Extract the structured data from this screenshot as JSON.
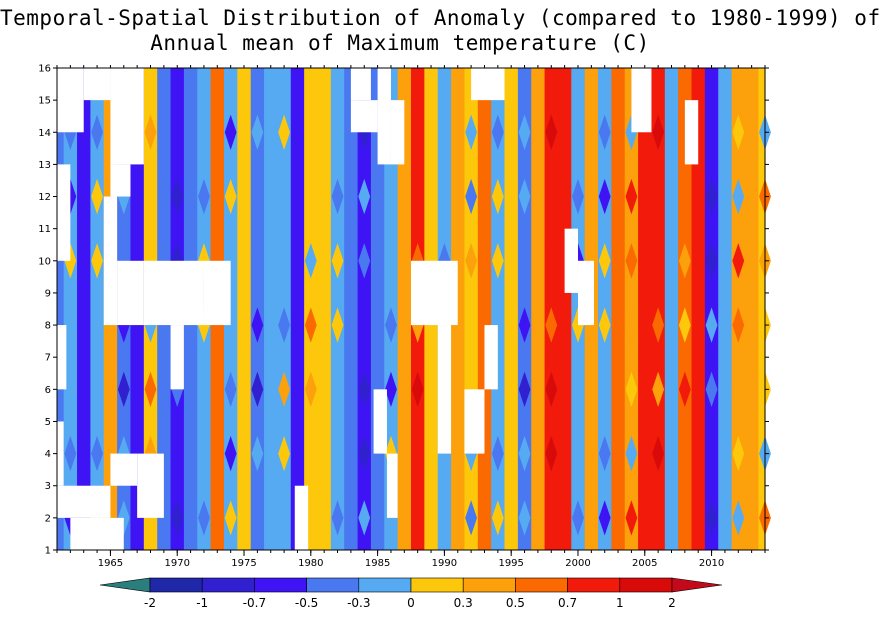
{
  "chart_data": {
    "type": "heatmap",
    "title_line1": "Temporal-Spatial Distribution of Anomaly (compared to 1980-1999) of",
    "title_line2": "Annual mean of Maximum temperature (C)",
    "x_range": [
      1961,
      2014
    ],
    "y_range": [
      1,
      16
    ],
    "x_ticks": [
      1965,
      1970,
      1975,
      1980,
      1985,
      1990,
      1995,
      2000,
      2005,
      2010
    ],
    "y_ticks": [
      1,
      2,
      3,
      4,
      5,
      6,
      7,
      8,
      9,
      10,
      11,
      12,
      13,
      14,
      15,
      16
    ],
    "colorbar": {
      "labels": [
        "-2",
        "-1",
        "-0.7",
        "-0.5",
        "-0.3",
        "0",
        "0.3",
        "0.5",
        "0.7",
        "1",
        "2"
      ],
      "colors": [
        "#2a7e7e",
        "#1f28a8",
        "#3020d0",
        "#3e14f5",
        "#4a78f0",
        "#56aaf2",
        "#fdc80b",
        "#fca00b",
        "#fb6a00",
        "#f21a0a",
        "#d80a0a",
        "#c40a1a"
      ]
    },
    "annual_field_mean": [
      [
        1961,
        -0.5
      ],
      [
        1962,
        -0.2
      ],
      [
        1963,
        -0.6
      ],
      [
        1964,
        -0.1
      ],
      [
        1965,
        0.35
      ],
      [
        1966,
        -0.4
      ],
      [
        1967,
        -0.6
      ],
      [
        1968,
        0.2
      ],
      [
        1969,
        -0.5
      ],
      [
        1970,
        -0.55
      ],
      [
        1971,
        -0.4
      ],
      [
        1972,
        -0.1
      ],
      [
        1973,
        0.6
      ],
      [
        1974,
        -0.3
      ],
      [
        1975,
        0.1
      ],
      [
        1976,
        -0.5
      ],
      [
        1977,
        -0.3
      ],
      [
        1978,
        -0.05
      ],
      [
        1979,
        -0.6
      ],
      [
        1980,
        0.2
      ],
      [
        1981,
        0.1
      ],
      [
        1982,
        -0.1
      ],
      [
        1983,
        -0.4
      ],
      [
        1984,
        -0.6
      ],
      [
        1985,
        -0.5
      ],
      [
        1986,
        -0.3
      ],
      [
        1987,
        0.4
      ],
      [
        1988,
        0.75
      ],
      [
        1989,
        0.2
      ],
      [
        1990,
        -0.1
      ],
      [
        1991,
        0.3
      ],
      [
        1992,
        0.0
      ],
      [
        1993,
        0.5
      ],
      [
        1994,
        -0.1
      ],
      [
        1995,
        0.1
      ],
      [
        1996,
        -0.4
      ],
      [
        1997,
        0.35
      ],
      [
        1998,
        0.95
      ],
      [
        1999,
        0.7
      ],
      [
        2000,
        -0.2
      ],
      [
        2001,
        0.4
      ],
      [
        2002,
        -0.15
      ],
      [
        2003,
        0.6
      ],
      [
        2004,
        0.35
      ],
      [
        2005,
        0.8
      ],
      [
        2006,
        0.7
      ],
      [
        2007,
        -0.1
      ],
      [
        2008,
        0.5
      ],
      [
        2009,
        0.9
      ],
      [
        2010,
        -0.6
      ],
      [
        2011,
        -0.3
      ],
      [
        2012,
        0.35
      ],
      [
        2013,
        0.3
      ],
      [
        2014,
        0.2
      ]
    ],
    "missing_regions": [
      {
        "x": [
          1961,
          1963
        ],
        "y": [
          14,
          16
        ]
      },
      {
        "x": [
          1963,
          1965
        ],
        "y": [
          15,
          16
        ]
      },
      {
        "x": [
          1965,
          1967.5
        ],
        "y": [
          13,
          16
        ]
      },
      {
        "x": [
          1965,
          1966.5
        ],
        "y": [
          12,
          13
        ]
      },
      {
        "x": [
          1964.5,
          1965.5
        ],
        "y": [
          8,
          12
        ]
      },
      {
        "x": [
          1965.5,
          1967.5
        ],
        "y": [
          8,
          10
        ]
      },
      {
        "x": [
          1967.5,
          1972
        ],
        "y": [
          8,
          10
        ]
      },
      {
        "x": [
          1972,
          1974
        ],
        "y": [
          8,
          10
        ]
      },
      {
        "x": [
          1969.5,
          1970.5
        ],
        "y": [
          6,
          8
        ]
      },
      {
        "x": [
          1961,
          1961.7
        ],
        "y": [
          6,
          8
        ]
      },
      {
        "x": [
          1961,
          1962
        ],
        "y": [
          10,
          13
        ]
      },
      {
        "x": [
          1961,
          1961.5
        ],
        "y": [
          3,
          5
        ]
      },
      {
        "x": [
          1961,
          1965
        ],
        "y": [
          2,
          3
        ]
      },
      {
        "x": [
          1962,
          1966
        ],
        "y": [
          1,
          2
        ]
      },
      {
        "x": [
          1965,
          1967
        ],
        "y": [
          3,
          4
        ]
      },
      {
        "x": [
          1967,
          1969
        ],
        "y": [
          2,
          4
        ]
      },
      {
        "x": [
          1978.8,
          1979.8
        ],
        "y": [
          1,
          3
        ]
      },
      {
        "x": [
          1983,
          1984.5
        ],
        "y": [
          15,
          16
        ]
      },
      {
        "x": [
          1983,
          1985
        ],
        "y": [
          14,
          15
        ]
      },
      {
        "x": [
          1985,
          1986
        ],
        "y": [
          13,
          16
        ]
      },
      {
        "x": [
          1986,
          1987
        ],
        "y": [
          13,
          15
        ]
      },
      {
        "x": [
          1987.5,
          1991
        ],
        "y": [
          8,
          10
        ]
      },
      {
        "x": [
          1989.5,
          1990.5
        ],
        "y": [
          4,
          8
        ]
      },
      {
        "x": [
          1984.7,
          1985.7
        ],
        "y": [
          4,
          6
        ]
      },
      {
        "x": [
          1985.7,
          1986.5
        ],
        "y": [
          2,
          4
        ]
      },
      {
        "x": [
          1991.5,
          1993
        ],
        "y": [
          4,
          6
        ]
      },
      {
        "x": [
          1993,
          1994
        ],
        "y": [
          6,
          8
        ]
      },
      {
        "x": [
          1992,
          1994.5
        ],
        "y": [
          15,
          16
        ]
      },
      {
        "x": [
          1999,
          2000
        ],
        "y": [
          9,
          11
        ]
      },
      {
        "x": [
          2000,
          2001.2
        ],
        "y": [
          8,
          10
        ]
      },
      {
        "x": [
          2004,
          2005.5
        ],
        "y": [
          14,
          16
        ]
      },
      {
        "x": [
          2008,
          2009
        ],
        "y": [
          13,
          15
        ]
      }
    ]
  }
}
